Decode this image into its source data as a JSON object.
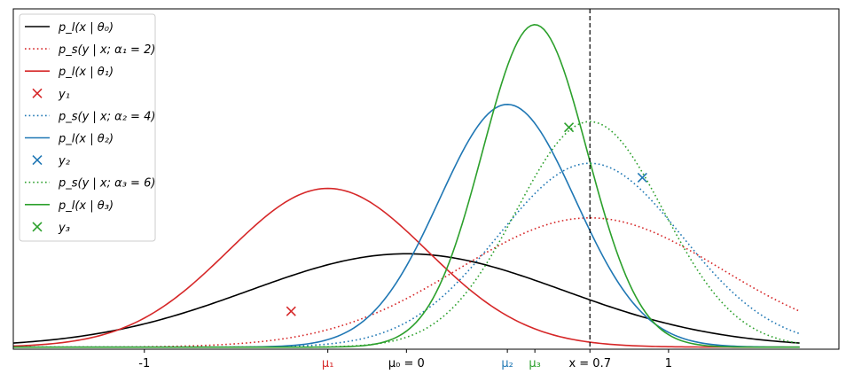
{
  "chart_data": {
    "type": "line",
    "title": "",
    "xlabel": "",
    "ylabel": "",
    "xlim": [
      -1.5,
      1.65
    ],
    "ylim": [
      -0.0286,
      4.71
    ],
    "grid": false,
    "legend_position": "upper-left",
    "x_ticks": [
      {
        "x": -1.0,
        "label": "-1",
        "color": "#000000"
      },
      {
        "x": -0.3,
        "label": "μ₁",
        "color": "#d62728"
      },
      {
        "x": 0.0,
        "label": "μ₀ = 0",
        "color": "#000000"
      },
      {
        "x": 0.385,
        "label": "μ₂",
        "color": "#1f77b4"
      },
      {
        "x": 0.49,
        "label": "μ₃",
        "color": "#2ca02c"
      },
      {
        "x": 0.7,
        "label": "x = 0.7",
        "color": "#000000"
      },
      {
        "x": 1.0,
        "label": "1",
        "color": "#000000"
      }
    ],
    "vline": {
      "x": 0.7,
      "style": "dashed",
      "color": "#000000"
    },
    "series": [
      {
        "name": "p_l(x | θ₀)",
        "kind": "gaussian",
        "mean": 0.0,
        "sd": 0.6,
        "style": "solid",
        "color": "#000000",
        "peak": 1.3
      },
      {
        "name": "p_s(y | x; α₁ = 2)",
        "kind": "gaussian",
        "mean": 0.7,
        "sd": 0.5,
        "style": "dotted",
        "color": "#d62728",
        "peak": 1.8
      },
      {
        "name": "p_l(x | θ₁)",
        "kind": "gaussian",
        "mean": -0.3,
        "sd": 0.38,
        "style": "solid",
        "color": "#d62728",
        "peak": 2.21
      },
      {
        "name": "y₁",
        "kind": "marker",
        "x": -0.44,
        "y": 0.5,
        "marker": "x",
        "color": "#d62728"
      },
      {
        "name": "p_s(y | x; α₂ = 4)",
        "kind": "gaussian",
        "mean": 0.7,
        "sd": 0.35,
        "style": "dotted",
        "color": "#1f77b4",
        "peak": 2.56
      },
      {
        "name": "p_l(x | θ₂)",
        "kind": "gaussian",
        "mean": 0.385,
        "sd": 0.26,
        "style": "solid",
        "color": "#1f77b4",
        "peak": 3.38
      },
      {
        "name": "y₂",
        "kind": "marker",
        "x": 0.9,
        "y": 2.36,
        "marker": "x",
        "color": "#1f77b4"
      },
      {
        "name": "p_s(y | x; α₃ = 6)",
        "kind": "gaussian",
        "mean": 0.7,
        "sd": 0.28,
        "style": "dotted",
        "color": "#2ca02c",
        "peak": 3.14
      },
      {
        "name": "p_l(x | θ₃)",
        "kind": "gaussian",
        "mean": 0.49,
        "sd": 0.2,
        "style": "solid",
        "color": "#2ca02c",
        "peak": 4.49
      },
      {
        "name": "y₃",
        "kind": "marker",
        "x": 0.62,
        "y": 3.06,
        "marker": "x",
        "color": "#2ca02c"
      }
    ]
  }
}
